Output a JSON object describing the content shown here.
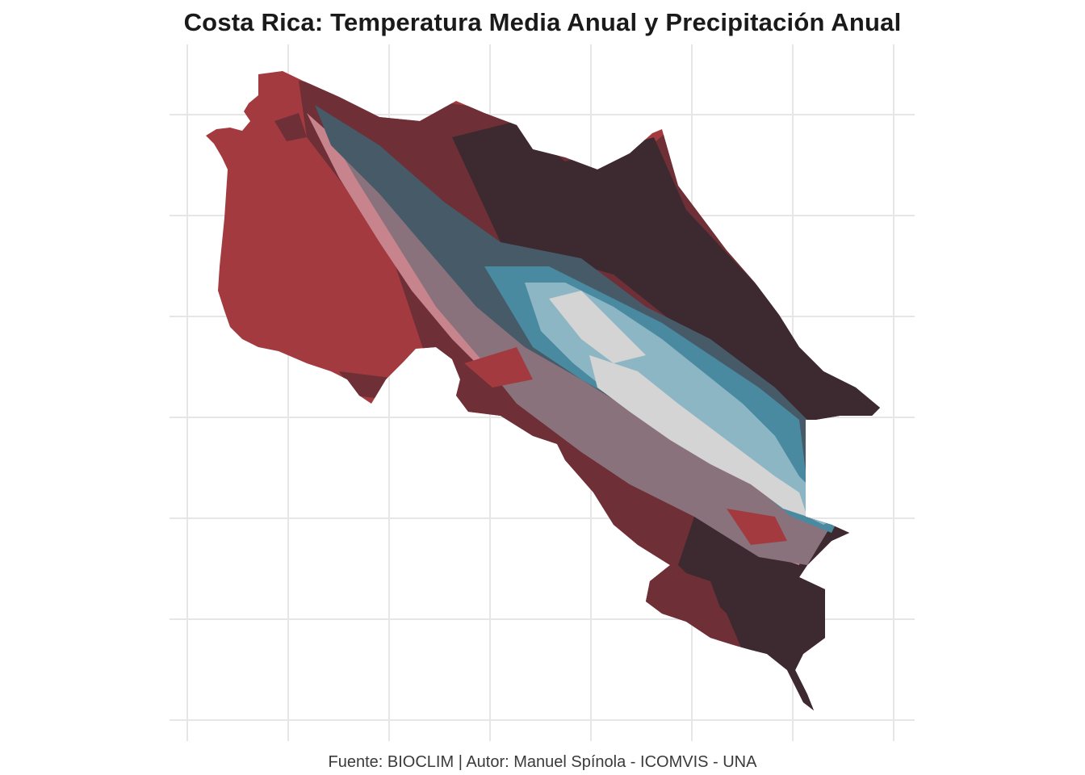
{
  "title": "Costa Rica: Temperatura Media Anual y Precipitación Anual",
  "caption": "Fuente: BIOCLIM | Autor: Manuel Spínola - ICOMVIS - UNA",
  "palette": {
    "dry_warm": "#a33a40",
    "mid_warm": "#6e2f36",
    "wet_warm": "#3c2a30",
    "rose": "#c8848c",
    "mauve": "#8a727c",
    "slate": "#465a68",
    "teal": "#4a8aa0",
    "light_teal": "#8cb6c4",
    "cold": "#d4d4d4",
    "grid": "#e6e6e6"
  }
}
